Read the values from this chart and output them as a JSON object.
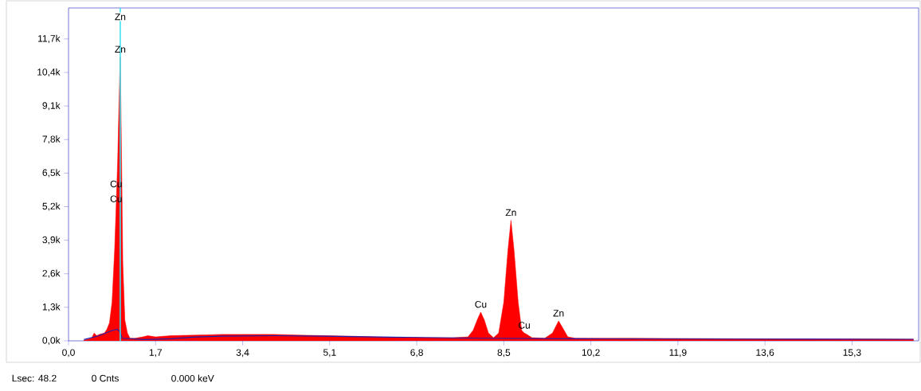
{
  "chart_data": {
    "type": "area",
    "xlim": [
      0,
      16.6
    ],
    "ylim": [
      0,
      12.9
    ],
    "xticks": [
      {
        "value": 0,
        "label": "0,0"
      },
      {
        "value": 1.7,
        "label": "1,7"
      },
      {
        "value": 3.4,
        "label": "3,4"
      },
      {
        "value": 5.1,
        "label": "5,1"
      },
      {
        "value": 6.8,
        "label": "6,8"
      },
      {
        "value": 8.5,
        "label": "8,5"
      },
      {
        "value": 10.2,
        "label": "10,2"
      },
      {
        "value": 11.9,
        "label": "11,9"
      },
      {
        "value": 13.6,
        "label": "13,6"
      },
      {
        "value": 15.3,
        "label": "15,3"
      }
    ],
    "yticks": [
      {
        "value": 0,
        "label": "0,0k"
      },
      {
        "value": 1.3,
        "label": "1,3k"
      },
      {
        "value": 2.6,
        "label": "2,6k"
      },
      {
        "value": 3.9,
        "label": "3,9k"
      },
      {
        "value": 5.2,
        "label": "5,2k"
      },
      {
        "value": 6.5,
        "label": "6,5k"
      },
      {
        "value": 7.8,
        "label": "7,8k"
      },
      {
        "value": 9.1,
        "label": "9,1k"
      },
      {
        "value": 10.4,
        "label": "10,4k"
      },
      {
        "value": 11.7,
        "label": "11,7k"
      }
    ],
    "grid": false,
    "series": [
      {
        "color": "#ff0000",
        "x": [
          0.3,
          0.45,
          0.5,
          0.55,
          0.6,
          0.7,
          0.75,
          0.8,
          0.85,
          0.9,
          0.93,
          0.96,
          0.99,
          1.01,
          1.03,
          1.06,
          1.1,
          1.15,
          1.2,
          1.3,
          1.45,
          1.55,
          1.7,
          2.0,
          2.5,
          3.0,
          3.5,
          4.0,
          4.5,
          5.0,
          5.5,
          6.0,
          6.5,
          7.0,
          7.5,
          7.8,
          7.9,
          8.0,
          8.05,
          8.12,
          8.2,
          8.3,
          8.4,
          8.5,
          8.58,
          8.64,
          8.7,
          8.78,
          8.85,
          8.9,
          8.95,
          9.05,
          9.3,
          9.45,
          9.57,
          9.65,
          9.75,
          9.9,
          11,
          13,
          15,
          16.5
        ],
        "values": [
          0.02,
          0.1,
          0.3,
          0.2,
          0.25,
          0.3,
          0.45,
          0.7,
          1.5,
          3.5,
          5.2,
          7,
          9.5,
          11.0,
          8,
          3,
          0.8,
          0.3,
          0.1,
          0.1,
          0.15,
          0.2,
          0.15,
          0.2,
          0.22,
          0.25,
          0.25,
          0.25,
          0.22,
          0.2,
          0.18,
          0.15,
          0.13,
          0.12,
          0.12,
          0.15,
          0.4,
          0.9,
          1.11,
          0.8,
          0.3,
          0.12,
          0.3,
          1.5,
          3.5,
          4.67,
          3.5,
          1.5,
          0.4,
          0.3,
          0.25,
          0.12,
          0.1,
          0.3,
          0.77,
          0.5,
          0.15,
          0.1,
          0.1,
          0.08,
          0.07,
          0.06
        ]
      },
      {
        "type": "line",
        "color": "#2020b0",
        "x": [
          0.3,
          0.6,
          0.85,
          0.95,
          1.0,
          1.05,
          1.5,
          2.0,
          2.5,
          3,
          4,
          5,
          6,
          8,
          10,
          13,
          16.5
        ],
        "values": [
          0.05,
          0.2,
          0.4,
          0.45,
          0.35,
          0.1,
          0.05,
          0.08,
          0.15,
          0.18,
          0.2,
          0.18,
          0.15,
          0.1,
          0.08,
          0.07,
          0.06
        ]
      }
    ],
    "ref_lines": [
      {
        "axis": "x",
        "value": 1.01,
        "color": "#40e0f0",
        "label": "Zn"
      }
    ],
    "annotations": [
      {
        "text": "Zn",
        "x": 1.01,
        "y": 11.0
      },
      {
        "text": "Cu",
        "x": 0.93,
        "y": 5.2
      },
      {
        "text": "Cu",
        "x": 0.93,
        "y": 5.2
      },
      {
        "text": "Cu",
        "x": 8.05,
        "y": 1.11
      },
      {
        "text": "Zn",
        "x": 8.64,
        "y": 4.67
      },
      {
        "text": "Cu",
        "x": 8.9,
        "y": 0.3
      },
      {
        "text": "Zn",
        "x": 9.57,
        "y": 0.77
      },
      "Lsec: 48.2",
      "0 Cnts",
      "0.000 keV"
    ]
  }
}
